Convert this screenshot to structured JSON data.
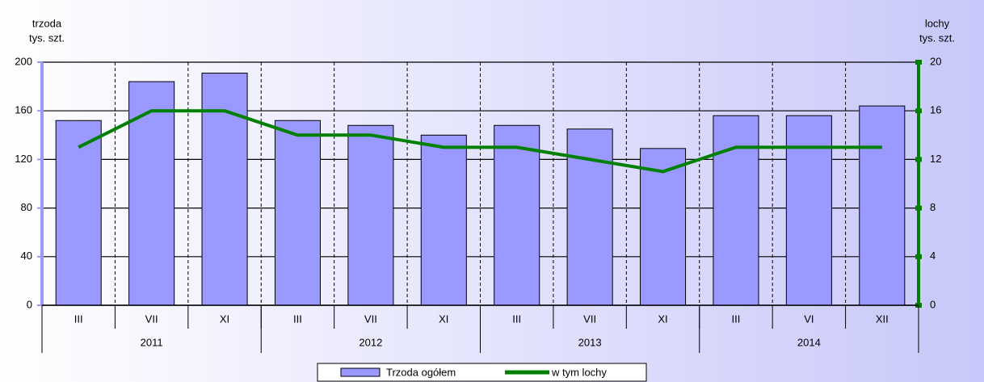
{
  "chart_data": {
    "type": "bar-line",
    "y_label": [
      "trzoda",
      "tys. szt."
    ],
    "y2_label": [
      "lochy",
      "tys. szt."
    ],
    "groups": [
      {
        "name": "2011",
        "categories": [
          "III",
          "VII",
          "XI"
        ]
      },
      {
        "name": "2012",
        "categories": [
          "III",
          "VII",
          "XI"
        ]
      },
      {
        "name": "2013",
        "categories": [
          "III",
          "VII",
          "XI"
        ]
      },
      {
        "name": "2014",
        "categories": [
          "III",
          "VI",
          "XII"
        ]
      }
    ],
    "series": [
      {
        "name": "Trzoda ogółem",
        "type": "bar",
        "color": "#9999ff",
        "values": [
          152,
          184,
          191,
          152,
          148,
          140,
          148,
          145,
          129,
          156,
          156,
          164
        ]
      },
      {
        "name": "w tym lochy",
        "type": "line",
        "axis": "y2",
        "color": "#008000",
        "values": [
          13,
          16,
          16,
          14,
          14,
          13,
          13,
          12,
          11,
          13,
          13,
          13
        ]
      }
    ],
    "ylim": [
      0,
      200
    ],
    "yticks": [
      0,
      40,
      80,
      120,
      160,
      200
    ],
    "y2lim": [
      0,
      20
    ],
    "y2ticks": [
      0,
      4,
      8,
      12,
      16,
      20
    ],
    "grid": true
  }
}
